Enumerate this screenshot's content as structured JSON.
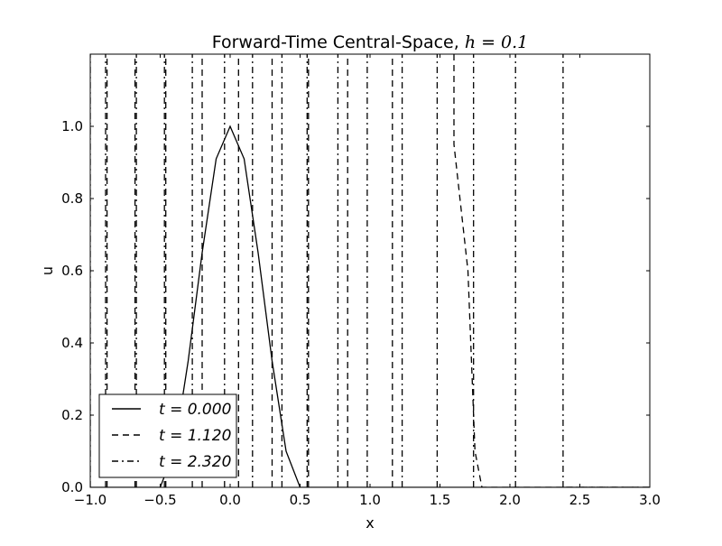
{
  "chart_data": {
    "type": "line",
    "title": "Forward-Time Central-Space, ",
    "title_math": "h = 0.1",
    "xlabel": "x",
    "ylabel": "u",
    "xlim": [
      -1.0,
      3.0
    ],
    "ylim": [
      0.0,
      1.2
    ],
    "xticks": [
      -1.0,
      -0.5,
      0.0,
      0.5,
      1.0,
      1.5,
      2.0,
      2.5,
      3.0
    ],
    "xtick_labels": [
      "−1.0",
      "−0.5",
      "0.0",
      "0.5",
      "1.0",
      "1.5",
      "2.0",
      "2.5",
      "3.0"
    ],
    "yticks": [
      0.0,
      0.2,
      0.4,
      0.6,
      0.8,
      1.0
    ],
    "ytick_labels": [
      "0.0",
      "0.2",
      "0.4",
      "0.6",
      "0.8",
      "1.0"
    ],
    "grid": false,
    "legend_position": "lower-left",
    "series": [
      {
        "name": "t = 0.000",
        "style": "solid",
        "color": "#000000",
        "segments": [
          [
            [
              -1.0,
              0.0
            ],
            [
              -0.5,
              0.0
            ],
            [
              -0.4,
              0.1
            ],
            [
              -0.3,
              0.35
            ],
            [
              -0.2,
              0.65
            ],
            [
              -0.1,
              0.91
            ],
            [
              0.0,
              1.0
            ],
            [
              0.1,
              0.91
            ],
            [
              0.2,
              0.65
            ],
            [
              0.3,
              0.35
            ],
            [
              0.4,
              0.1
            ],
            [
              0.5,
              0.0
            ],
            [
              3.0,
              0.0
            ]
          ]
        ]
      },
      {
        "name": "t = 1.120",
        "style": "dashed",
        "color": "#000000",
        "segments": [
          [
            [
              -0.88,
              0.0
            ],
            [
              -0.88,
              1.2
            ]
          ],
          [
            [
              -0.68,
              0.0
            ],
            [
              -0.68,
              1.2
            ]
          ],
          [
            [
              -0.46,
              0.0
            ],
            [
              -0.46,
              1.2
            ]
          ],
          [
            [
              -0.2,
              0.0
            ],
            [
              -0.2,
              1.2
            ]
          ],
          [
            [
              0.06,
              0.0
            ],
            [
              0.06,
              1.2
            ]
          ],
          [
            [
              0.3,
              0.0
            ],
            [
              0.3,
              1.2
            ]
          ],
          [
            [
              0.56,
              0.0
            ],
            [
              0.56,
              1.2
            ]
          ],
          [
            [
              0.84,
              0.0
            ],
            [
              0.84,
              1.2
            ]
          ],
          [
            [
              1.16,
              0.0
            ],
            [
              1.16,
              1.2
            ]
          ],
          [
            [
              1.6,
              1.2
            ],
            [
              1.6,
              0.95
            ],
            [
              1.7,
              0.6
            ],
            [
              1.75,
              0.1
            ],
            [
              1.8,
              0.0
            ],
            [
              3.0,
              0.0
            ]
          ]
        ]
      },
      {
        "name": "t = 2.320",
        "style": "dashdot",
        "color": "#000000",
        "segments": [
          [
            [
              -1.0,
              0.0
            ],
            [
              -1.0,
              1.2
            ]
          ],
          [
            [
              -0.89,
              0.0
            ],
            [
              -0.89,
              1.2
            ]
          ],
          [
            [
              -0.67,
              0.0
            ],
            [
              -0.67,
              1.2
            ]
          ],
          [
            [
              -0.47,
              0.0
            ],
            [
              -0.47,
              1.2
            ]
          ],
          [
            [
              -0.27,
              0.0
            ],
            [
              -0.27,
              1.2
            ]
          ],
          [
            [
              -0.04,
              0.0
            ],
            [
              -0.04,
              1.2
            ]
          ],
          [
            [
              0.16,
              0.0
            ],
            [
              0.16,
              1.2
            ]
          ],
          [
            [
              0.37,
              0.0
            ],
            [
              0.37,
              1.2
            ]
          ],
          [
            [
              0.55,
              0.0
            ],
            [
              0.55,
              1.2
            ]
          ],
          [
            [
              0.77,
              0.0
            ],
            [
              0.77,
              1.2
            ]
          ],
          [
            [
              0.98,
              0.0
            ],
            [
              0.98,
              1.2
            ]
          ],
          [
            [
              1.23,
              0.0
            ],
            [
              1.23,
              1.2
            ]
          ],
          [
            [
              1.48,
              0.0
            ],
            [
              1.48,
              1.2
            ]
          ],
          [
            [
              1.74,
              0.0
            ],
            [
              1.74,
              1.2
            ]
          ],
          [
            [
              2.04,
              0.0
            ],
            [
              2.04,
              1.2
            ]
          ],
          [
            [
              2.38,
              0.0
            ],
            [
              2.38,
              1.2
            ]
          ],
          [
            [
              2.4,
              0.0
            ],
            [
              3.0,
              0.0
            ]
          ]
        ]
      }
    ]
  }
}
